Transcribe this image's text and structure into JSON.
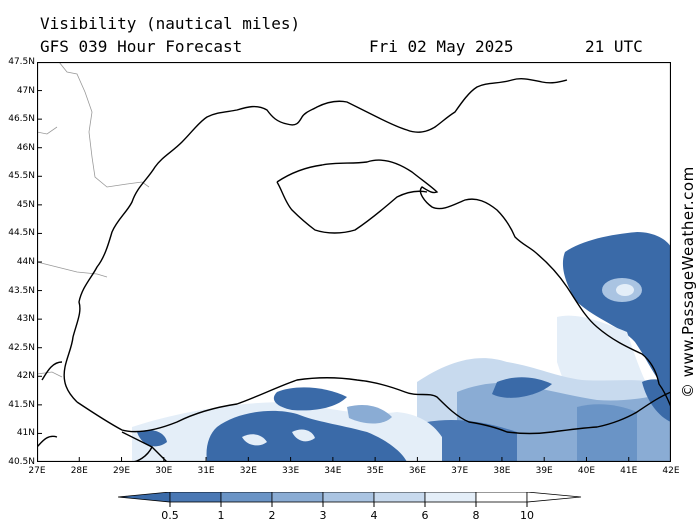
{
  "header": {
    "variable": "Visibility (nautical miles)",
    "model_line": "GFS 039 Hour Forecast",
    "date": "Fri 02 May 2025",
    "time": "21 UTC"
  },
  "credit": "© www.PassageWeather.com",
  "map": {
    "lat_labels": [
      "47.5N",
      "47N",
      "46.5N",
      "46N",
      "45.5N",
      "45N",
      "44.5N",
      "44N",
      "43.5N",
      "43N",
      "42.5N",
      "42N",
      "41.5N",
      "41N",
      "40.5N"
    ],
    "lon_labels": [
      "27E",
      "28E",
      "29E",
      "30E",
      "31E",
      "32E",
      "33E",
      "34E",
      "35E",
      "36E",
      "37E",
      "38E",
      "39E",
      "40E",
      "41E",
      "42E"
    ],
    "lat_range": [
      40.5,
      47.5
    ],
    "lon_range": [
      27,
      42
    ]
  },
  "legend": {
    "labels": [
      "0.5",
      "1",
      "2",
      "3",
      "4",
      "6",
      "8",
      "10"
    ],
    "colors": [
      "#3a6aa8",
      "#4a78b4",
      "#6a94c6",
      "#8aacd4",
      "#aac4e2",
      "#c8daee",
      "#e4eef8",
      "#ffffff"
    ]
  },
  "colors": {
    "land_border": "#999999",
    "coast": "#000000",
    "dense": "#3a6aa8"
  }
}
